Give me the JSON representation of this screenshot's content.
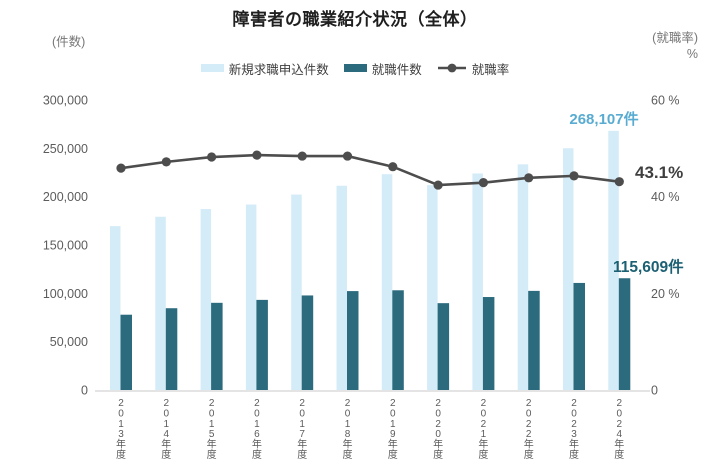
{
  "chart_data": {
    "type": "bar",
    "subtype": "combo-bar-line",
    "title": "障害者の職業紹介状況（全体）",
    "left_axis": {
      "caption": "(件数)",
      "min": 0,
      "max": 300000,
      "ticks": [
        {
          "label": "300,000",
          "value": 300000
        },
        {
          "label": "250,000",
          "value": 250000
        },
        {
          "label": "200,000",
          "value": 200000
        },
        {
          "label": "150,000",
          "value": 150000
        },
        {
          "label": "100,000",
          "value": 100000
        },
        {
          "label": "50,000",
          "value": 50000
        },
        {
          "label": "0",
          "value": 0
        }
      ]
    },
    "right_axis": {
      "caption": "(就職率)",
      "unit": "%",
      "min": 0,
      "max": 60,
      "ticks": [
        {
          "label": "60 %",
          "value": 60
        },
        {
          "label": "40 %",
          "value": 40
        },
        {
          "label": "20 %",
          "value": 20
        },
        {
          "label": "0",
          "value": 0
        }
      ]
    },
    "categories": [
      "2013年度",
      "2014年度",
      "2015年度",
      "2016年度",
      "2017年度",
      "2018年度",
      "2019年度",
      "2020年度",
      "2021年度",
      "2022年度",
      "2023年度",
      "2024年度"
    ],
    "series": [
      {
        "name": "新規求職申込件数",
        "type": "bar",
        "axis": "left",
        "color": "#D4EBF8",
        "values": [
          169522,
          179222,
          187198,
          191853,
          202143,
          211271,
          223229,
          211926,
          223985,
          233434,
          250054,
          268107
        ]
      },
      {
        "name": "就職件数",
        "type": "bar",
        "axis": "left",
        "color": "#2C6B7E",
        "values": [
          77883,
          84602,
          90191,
          93229,
          97814,
          102318,
          103163,
          89840,
          96180,
          102537,
          110756,
          115609
        ]
      },
      {
        "name": "就職率",
        "type": "line",
        "axis": "right",
        "color": "#4D4D4D",
        "values": [
          45.9,
          47.2,
          48.2,
          48.6,
          48.4,
          48.4,
          46.2,
          42.4,
          42.9,
          43.9,
          44.3,
          43.1
        ]
      }
    ],
    "annotations": [
      {
        "target": "新規求職申込件数 2024年度",
        "text": "268,107件",
        "color": "#58ABD1"
      },
      {
        "target": "就職率 2024年度",
        "text": "43.1%",
        "color": "#3F3F3F"
      },
      {
        "target": "就職件数 2024年度",
        "text": "115,609件",
        "color": "#1C6073"
      }
    ],
    "legend_position": "top",
    "grid": false,
    "baseline_color": "#DCDCDC"
  }
}
